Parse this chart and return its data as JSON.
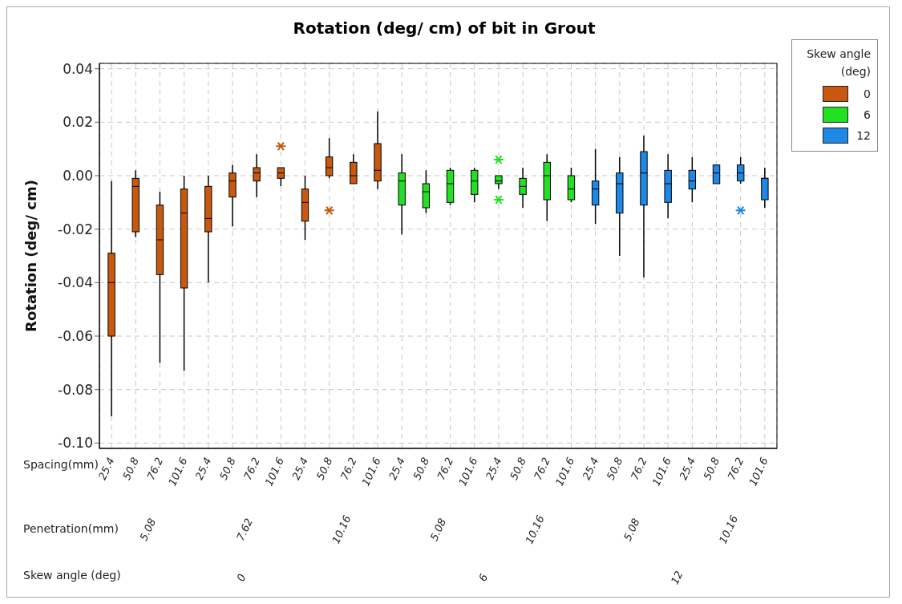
{
  "chart_data": {
    "type": "box",
    "title": "Rotation (deg/ cm) of bit in Grout",
    "ylabel": "Rotation (deg/ cm)",
    "legend_title": "Skew angle (deg)",
    "legend": "right",
    "grid": true,
    "categories": [
      "25.4",
      "50.8",
      "76.2",
      "101.6",
      "25.4",
      "50.8",
      "76.2",
      "101.6",
      "25.4",
      "50.8",
      "76.2",
      "101.6",
      "25.4",
      "50.8",
      "76.2",
      "101.6",
      "25.4",
      "50.8",
      "76.2",
      "101.6",
      "25.4",
      "50.8",
      "76.2",
      "101.6",
      "25.4",
      "50.8",
      "76.2",
      "101.6"
    ],
    "annotations": [
      "Spacing(mm)",
      "Penetration(mm)",
      "Skew angle (deg)",
      "5.08",
      "7.62",
      "10.16",
      "5.08",
      "10.16",
      "5.08",
      "10.16"
    ],
    "ylim": [
      -0.102,
      0.042
    ],
    "yticks": [
      {
        "value": 0.04,
        "label": "0.04"
      },
      {
        "value": 0.02,
        "label": "0.02"
      },
      {
        "value": 0,
        "label": "0.00"
      },
      {
        "value": -0.02,
        "label": "-0.02"
      },
      {
        "value": -0.04,
        "label": "-0.04"
      },
      {
        "value": -0.06,
        "label": "-0.06"
      },
      {
        "value": -0.08,
        "label": "-0.08"
      },
      {
        "value": -0.1,
        "label": "-0.10"
      }
    ],
    "series": [
      {
        "name": "0",
        "color": "#c9580f",
        "boxes": [
          {
            "low": -0.09,
            "q1": -0.06,
            "median": -0.04,
            "q3": -0.029,
            "high": -0.002
          },
          {
            "low": -0.023,
            "q1": -0.021,
            "median": -0.004,
            "q3": -0.001,
            "high": 0.002
          },
          {
            "low": -0.07,
            "q1": -0.037,
            "median": -0.024,
            "q3": -0.011,
            "high": -0.006
          },
          {
            "low": -0.073,
            "q1": -0.042,
            "median": -0.014,
            "q3": -0.005,
            "high": 0.0
          },
          {
            "low": -0.04,
            "q1": -0.021,
            "median": -0.016,
            "q3": -0.004,
            "high": 0.0
          },
          {
            "low": -0.019,
            "q1": -0.008,
            "median": -0.002,
            "q3": 0.001,
            "high": 0.004
          },
          {
            "low": -0.008,
            "q1": -0.002,
            "median": 0.001,
            "q3": 0.003,
            "high": 0.008
          },
          {
            "low": -0.004,
            "q1": -0.001,
            "median": 0.001,
            "q3": 0.003,
            "high": 0.003,
            "outliers": [
              0.011
            ]
          },
          {
            "low": -0.024,
            "q1": -0.017,
            "median": -0.01,
            "q3": -0.005,
            "high": 0.0
          },
          {
            "low": -0.001,
            "q1": 0.0,
            "median": 0.003,
            "q3": 0.007,
            "high": 0.014,
            "outliers": [
              -0.013
            ]
          },
          {
            "low": -0.003,
            "q1": -0.003,
            "median": 0.0,
            "q3": 0.005,
            "high": 0.008
          },
          {
            "low": -0.005,
            "q1": -0.002,
            "median": 0.002,
            "q3": 0.012,
            "high": 0.024
          },
          null,
          null,
          null,
          null,
          null,
          null,
          null,
          null,
          null,
          null,
          null,
          null,
          null,
          null,
          null,
          null
        ]
      },
      {
        "name": "6",
        "color": "#22e022",
        "boxes": [
          null,
          null,
          null,
          null,
          null,
          null,
          null,
          null,
          null,
          null,
          null,
          null,
          {
            "low": -0.022,
            "q1": -0.011,
            "median": -0.002,
            "q3": 0.001,
            "high": 0.008
          },
          {
            "low": -0.014,
            "q1": -0.012,
            "median": -0.006,
            "q3": -0.003,
            "high": 0.002
          },
          {
            "low": -0.011,
            "q1": -0.01,
            "median": -0.003,
            "q3": 0.002,
            "high": 0.003
          },
          {
            "low": -0.01,
            "q1": -0.007,
            "median": -0.002,
            "q3": 0.002,
            "high": 0.003
          },
          {
            "low": -0.005,
            "q1": -0.003,
            "median": -0.002,
            "q3": 0.0,
            "high": 0.0,
            "outliers": [
              0.006,
              -0.009
            ]
          },
          {
            "low": -0.012,
            "q1": -0.007,
            "median": -0.004,
            "q3": -0.001,
            "high": 0.003
          },
          {
            "low": -0.017,
            "q1": -0.009,
            "median": 0.0,
            "q3": 0.005,
            "high": 0.008
          },
          {
            "low": -0.01,
            "q1": -0.009,
            "median": -0.005,
            "q3": 0.0,
            "high": 0.003
          },
          null,
          null,
          null,
          null,
          null,
          null,
          null,
          null
        ]
      },
      {
        "name": "12",
        "color": "#1e88e5",
        "boxes": [
          null,
          null,
          null,
          null,
          null,
          null,
          null,
          null,
          null,
          null,
          null,
          null,
          null,
          null,
          null,
          null,
          null,
          null,
          null,
          null,
          {
            "low": -0.018,
            "q1": -0.011,
            "median": -0.005,
            "q3": -0.002,
            "high": 0.01
          },
          {
            "low": -0.03,
            "q1": -0.014,
            "median": -0.003,
            "q3": 0.001,
            "high": 0.007
          },
          {
            "low": -0.038,
            "q1": -0.011,
            "median": 0.001,
            "q3": 0.009,
            "high": 0.015
          },
          {
            "low": -0.016,
            "q1": -0.01,
            "median": -0.003,
            "q3": 0.002,
            "high": 0.008
          },
          {
            "low": -0.01,
            "q1": -0.005,
            "median": -0.002,
            "q3": 0.002,
            "high": 0.007
          },
          {
            "low": -0.003,
            "q1": -0.003,
            "median": 0.001,
            "q3": 0.004,
            "high": 0.004
          },
          {
            "low": -0.003,
            "q1": -0.002,
            "median": 0.001,
            "q3": 0.004,
            "high": 0.007,
            "outliers": [
              -0.013
            ]
          },
          {
            "low": -0.012,
            "q1": -0.009,
            "median": -0.001,
            "q3": -0.001,
            "high": 0.003
          }
        ]
      }
    ]
  }
}
